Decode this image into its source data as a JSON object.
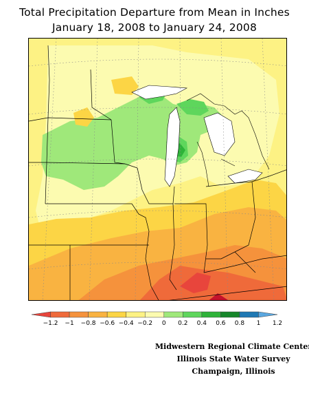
{
  "title": {
    "line1": "Total Precipitation Departure from Mean in Inches",
    "line2": "January 18, 2008 to January 24, 2008"
  },
  "colorbar": {
    "bins": [
      {
        "color": "#e8453c"
      },
      {
        "color": "#ef6a3a"
      },
      {
        "color": "#f5923c"
      },
      {
        "color": "#f9b341"
      },
      {
        "color": "#fcd545"
      },
      {
        "color": "#fdf284"
      },
      {
        "color": "#fcfbb0"
      },
      {
        "color": "#9fe87a"
      },
      {
        "color": "#5ed65c"
      },
      {
        "color": "#2eb339"
      },
      {
        "color": "#16862a"
      },
      {
        "color": "#1e78b4"
      },
      {
        "color": "#5aa7e0"
      }
    ],
    "tick_labels": [
      "−1.2",
      "−1",
      "−0.8",
      "−0.6",
      "−0.4",
      "−0.2",
      "0",
      "0.2",
      "0.4",
      "0.6",
      "0.8",
      "1",
      "1.2"
    ]
  },
  "credits": {
    "line1": "Midwestern Regional Climate Center",
    "line2": "Illinois State Water Survey",
    "line3": "Champaign, Illinois"
  }
}
